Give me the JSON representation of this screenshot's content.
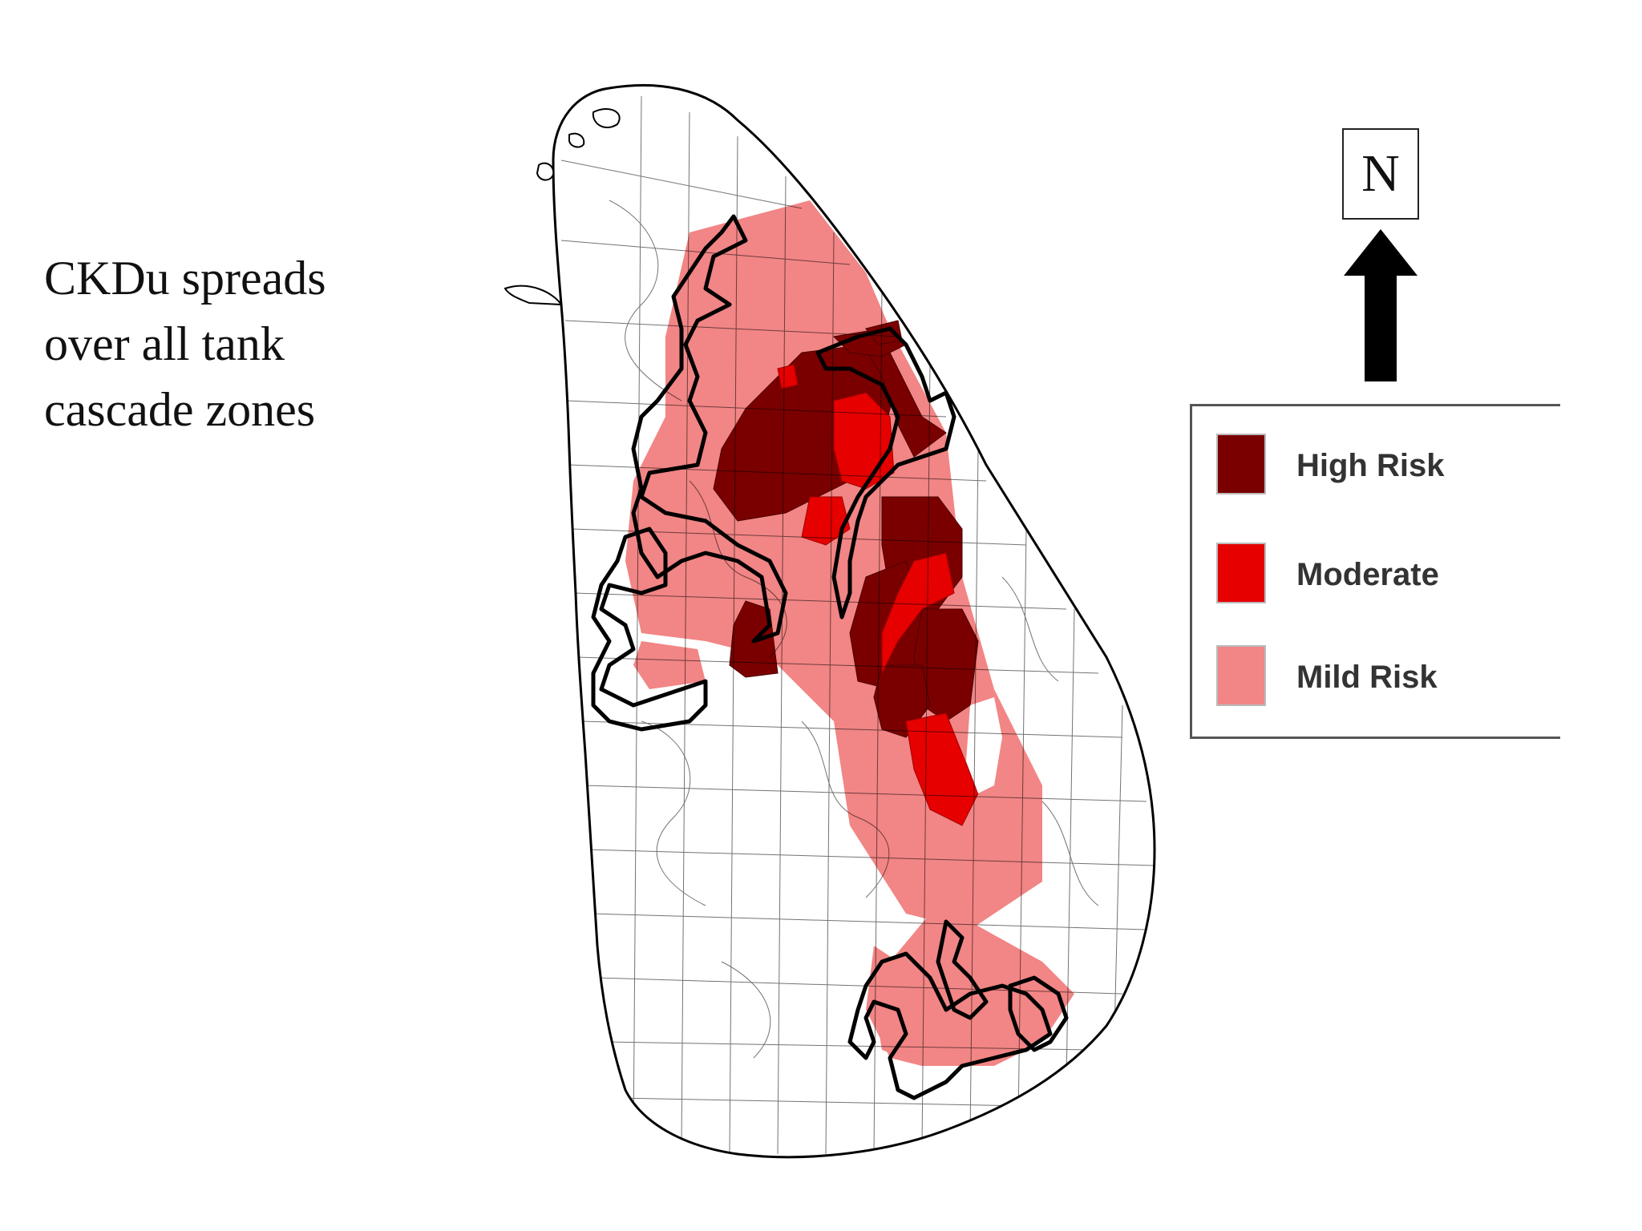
{
  "caption": {
    "line1": "CKDu spreads",
    "line2": "over all tank",
    "line3": "cascade zones"
  },
  "north_arrow": {
    "label": "N"
  },
  "legend": {
    "items": [
      {
        "label": "High Risk",
        "color": "#7a0000"
      },
      {
        "label": "Moderate",
        "color": "#e60000"
      },
      {
        "label": "Mild Risk",
        "color": "#f28585"
      }
    ]
  },
  "colors": {
    "background": "#ffffff",
    "boundary": "#000000",
    "cascade_outline": "#000000"
  }
}
